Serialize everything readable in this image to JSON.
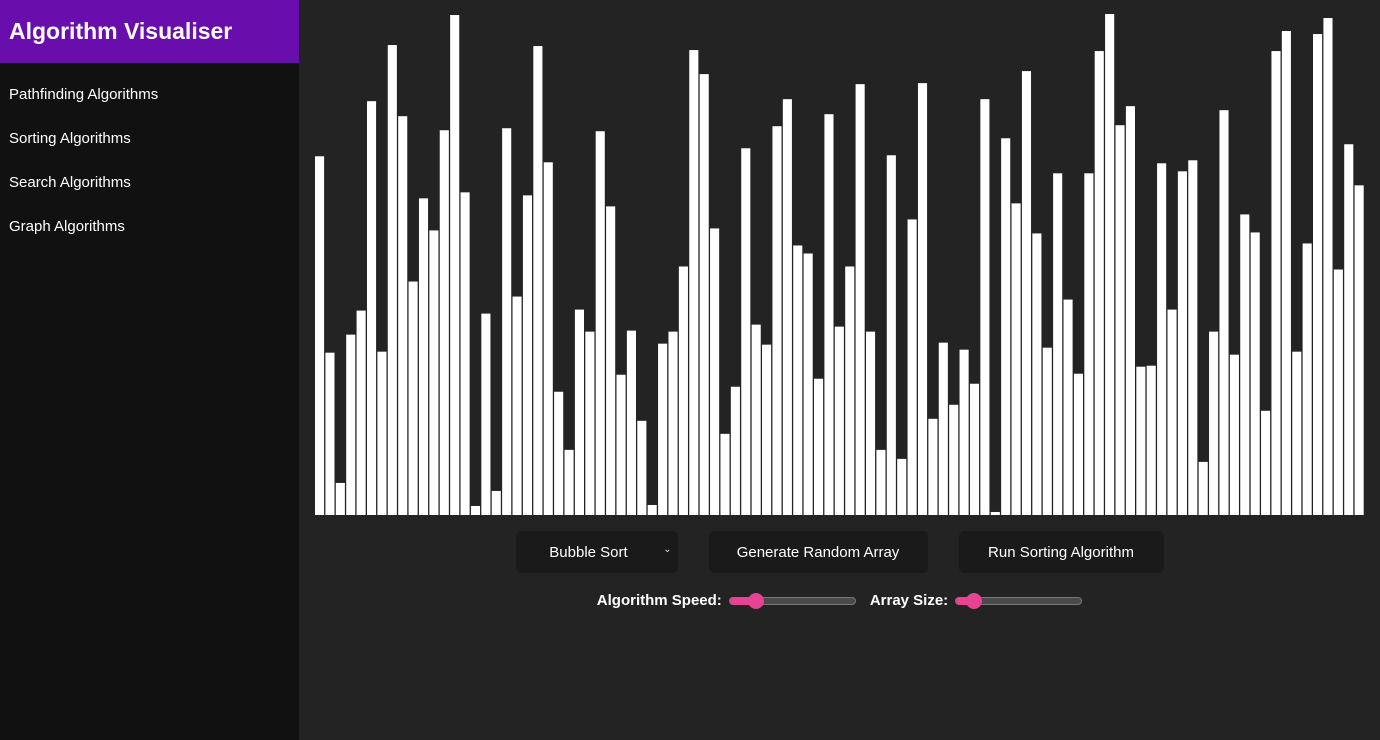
{
  "app": {
    "title": "Algorithm Visualiser"
  },
  "sidebar": {
    "items": [
      {
        "label": "Pathfinding Algorithms"
      },
      {
        "label": "Sorting Algorithms"
      },
      {
        "label": "Search Algorithms"
      },
      {
        "label": "Graph Algorithms"
      }
    ]
  },
  "controls": {
    "algorithm_select": {
      "selected": "Bubble Sort"
    },
    "generate_label": "Generate Random Array",
    "run_label": "Run Sorting Algorithm"
  },
  "sliders": {
    "speed": {
      "label": "Algorithm Speed:",
      "fraction": 0.21
    },
    "size": {
      "label": "Array Size:",
      "fraction": 0.14
    }
  },
  "colors": {
    "accent": "#e84393",
    "header": "#6a0dad",
    "bar": "#ffffff"
  },
  "array": [
    358,
    162,
    32,
    180,
    204,
    413,
    163,
    469,
    398,
    233,
    316,
    284,
    384,
    499,
    322,
    9,
    201,
    24,
    386,
    218,
    319,
    468,
    352,
    123,
    65,
    205,
    183,
    383,
    308,
    140,
    184,
    94,
    10,
    171,
    183,
    248,
    464,
    440,
    286,
    81,
    128,
    366,
    190,
    170,
    388,
    415,
    269,
    261,
    136,
    400,
    188,
    248,
    430,
    183,
    65,
    359,
    56,
    295,
    431,
    96,
    172,
    110,
    165,
    131,
    415,
    3,
    376,
    311,
    443,
    281,
    167,
    341,
    215,
    141,
    341,
    463,
    500,
    389,
    408,
    148,
    149,
    351,
    205,
    343,
    354,
    53,
    183,
    404,
    160,
    300,
    282,
    104,
    463,
    483,
    163,
    271,
    480,
    496,
    245,
    370,
    329
  ]
}
